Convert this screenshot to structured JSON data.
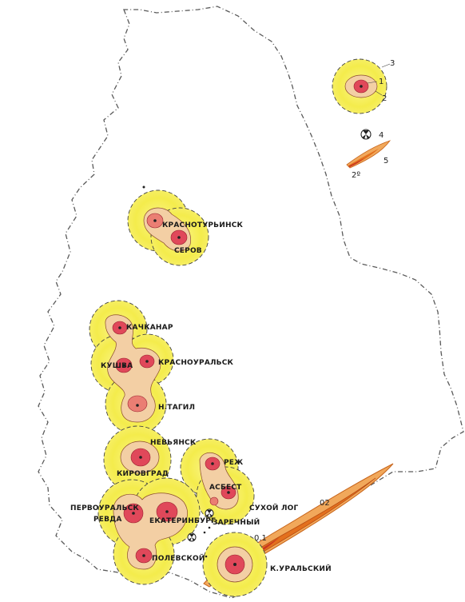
{
  "map": {
    "colors": {
      "halo": "#f5ef53",
      "halo_edge": "#e9db3a",
      "zone_mid": "#f3cfa4",
      "zone_inner": "#ea7e73",
      "zone_core": "#d8323f",
      "plume_outer": "#f0a455",
      "plume_inner": "#e26b1c",
      "plume_core": "#c93820",
      "border": "#555555",
      "dashed": "#444444"
    },
    "cities": [
      {
        "id": "krasnoturinsk",
        "label": "КРАСНОТУРЬИНСК"
      },
      {
        "id": "serov",
        "label": "СЕРОВ"
      },
      {
        "id": "kachkanar",
        "label": "КАЧКАНАР"
      },
      {
        "id": "kushva",
        "label": "КУШВА"
      },
      {
        "id": "krasnouralsk",
        "label": "КРАСНОУРАЛЬСК"
      },
      {
        "id": "ntagil",
        "label": "Н.ТАГИЛ"
      },
      {
        "id": "nevyansk",
        "label": "НЕВЬЯНСК"
      },
      {
        "id": "kirovgrad",
        "label": "КИРОВГРАД"
      },
      {
        "id": "rezh",
        "label": "РЕЖ"
      },
      {
        "id": "asbest",
        "label": "АСБЕСТ"
      },
      {
        "id": "pervouralsk",
        "label": "ПЕРВОУРАЛЬСК"
      },
      {
        "id": "revda",
        "label": "РЕВДА"
      },
      {
        "id": "ekaterinburg",
        "label": "ЕКАТЕРИНБУРГ"
      },
      {
        "id": "sukhoi-log",
        "label": "СУХОЙ ЛОГ"
      },
      {
        "id": "zarechny",
        "label": "ЗАРЕЧНЫЙ"
      },
      {
        "id": "polevskoy",
        "label": "ПОЛЕВСКОЙ"
      },
      {
        "id": "kuralsky",
        "label": "К.УРАЛЬСКИЙ"
      }
    ],
    "legend": {
      "items": [
        {
          "num": "1",
          "icon": "point-source-dot"
        },
        {
          "num": "2",
          "icon": "inner-zone-ring"
        },
        {
          "num": "3",
          "icon": "outer-halo-ring"
        },
        {
          "num": "4",
          "icon": "radiation-hazard-icon"
        },
        {
          "num": "5",
          "icon": "contamination-plume"
        }
      ],
      "plume_value": "2º"
    },
    "plume_labels": [
      "02",
      "0.1"
    ]
  }
}
